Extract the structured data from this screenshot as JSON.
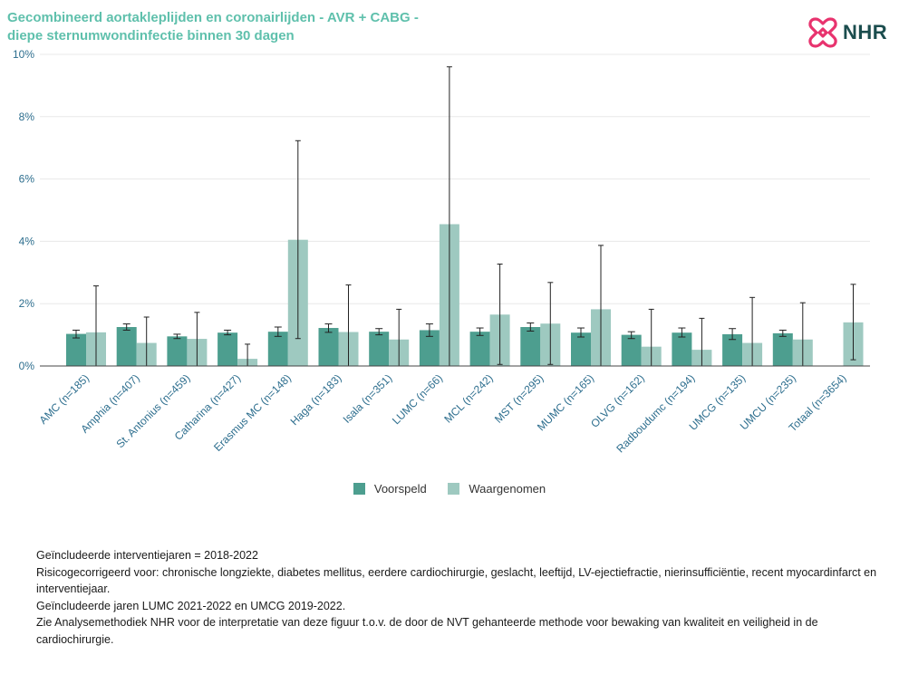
{
  "title_lines": [
    "Gecombineerd aortakleplijden en coronairlijden - AVR + CABG -",
    "diepe sternumwondinfectie binnen 30 dagen"
  ],
  "logo": {
    "text": "NHR",
    "icon": "nhr-cross-logo-icon",
    "icon_color": "#e8336e",
    "text_color": "#1b4d4e"
  },
  "chart_data": {
    "type": "bar",
    "categories": [
      "AMC (n=185)",
      "Amphia (n=407)",
      "St. Antonius (n=459)",
      "Catharina (n=427)",
      "Erasmus MC (n=148)",
      "Haga (n=183)",
      "Isala (n=351)",
      "LUMC (n=66)",
      "MCL (n=242)",
      "MST (n=295)",
      "MUMC (n=165)",
      "OLVG (n=162)",
      "Radboudumc (n=194)",
      "UMCG (n=135)",
      "UMCU (n=235)",
      "Totaal (n=3654)"
    ],
    "series": [
      {
        "name": "Voorspeld",
        "color": "#4d9e8f",
        "values": [
          1.03,
          1.25,
          0.95,
          1.07,
          1.1,
          1.22,
          1.1,
          1.15,
          1.1,
          1.25,
          1.07,
          1.0,
          1.07,
          1.02,
          1.05,
          null
        ],
        "err_low": [
          0.9,
          1.15,
          0.88,
          1.0,
          0.95,
          1.08,
          1.0,
          0.95,
          0.98,
          1.12,
          0.93,
          0.88,
          0.93,
          0.85,
          0.95,
          null
        ],
        "err_high": [
          1.15,
          1.35,
          1.02,
          1.15,
          1.25,
          1.35,
          1.2,
          1.35,
          1.22,
          1.38,
          1.22,
          1.1,
          1.22,
          1.2,
          1.15,
          null
        ]
      },
      {
        "name": "Waargenomen",
        "color": "#9ec9c0",
        "values": [
          1.08,
          0.74,
          0.87,
          0.23,
          4.05,
          1.09,
          0.85,
          4.55,
          1.65,
          1.36,
          1.82,
          0.62,
          0.52,
          0.74,
          0.85,
          1.4
        ],
        "err_low": [
          0.0,
          0.0,
          0.0,
          0.0,
          0.88,
          0.0,
          0.0,
          0.0,
          0.05,
          0.05,
          0.0,
          0.0,
          0.0,
          0.0,
          0.0,
          0.2
        ],
        "err_high": [
          2.57,
          1.57,
          1.72,
          0.7,
          7.23,
          2.6,
          1.82,
          9.6,
          3.27,
          2.68,
          3.87,
          1.82,
          1.53,
          2.2,
          2.03,
          2.62
        ]
      }
    ],
    "y_ticks": [
      "0%",
      "2%",
      "4%",
      "6%",
      "8%",
      "10%"
    ],
    "y_tick_values": [
      0,
      2,
      4,
      6,
      8,
      10
    ],
    "ylim": [
      0,
      10
    ],
    "grid": true,
    "legend_position": "bottom-center"
  },
  "notes": [
    "Geïncludeerde interventiejaren = 2018-2022",
    "Risicogecorrigeerd voor: chronische longziekte, diabetes mellitus, eerdere cardiochirurgie, geslacht, leeftijd, LV-ejectiefractie, nierinsufficiëntie, recent myocardinfarct en interventiejaar.",
    "Geïncludeerde jaren LUMC 2021-2022 en UMCG 2019-2022.",
    "Zie Analysemethodiek NHR voor de interpretatie van deze figuur t.o.v. de door de NVT gehanteerde methode voor bewaking van kwaliteit en veiligheid in de cardiochirurgie."
  ]
}
